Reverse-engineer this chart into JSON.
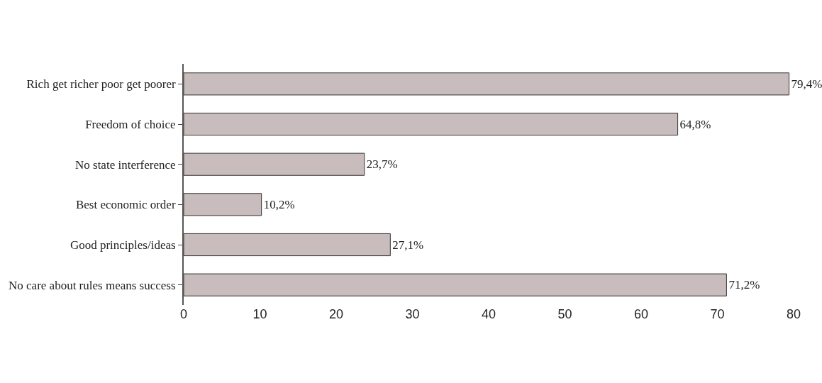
{
  "chart_data": {
    "type": "bar",
    "orientation": "horizontal",
    "categories": [
      "Rich get richer poor get poorer",
      "Freedom of choice",
      "No state interference",
      "Best economic order",
      "Good principles/ideas",
      "No care about rules means success"
    ],
    "values": [
      79.4,
      64.8,
      23.7,
      10.2,
      27.1,
      71.2
    ],
    "value_labels": [
      "79,4%",
      "64,8%",
      "23,7%",
      "10,2%",
      "27,1%",
      "71,2%"
    ],
    "color": "#c9bcbc",
    "xlim": [
      0,
      80
    ],
    "xticks": [
      0,
      10,
      20,
      30,
      40,
      50,
      60,
      70,
      80
    ],
    "grid": false,
    "legend": false
  }
}
